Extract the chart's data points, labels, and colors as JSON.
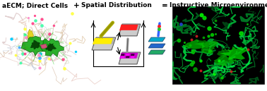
{
  "title_right": "Instructive Microenvironments",
  "label_left": "aECM; Direct Cells",
  "label_plus": "+",
  "label_middle": "Spatial Distribution",
  "label_equals": "=",
  "bg_color": "#ffffff",
  "label_fontsize": 6.5,
  "fig_width": 3.78,
  "fig_height": 1.29,
  "dpi": 100,
  "slide_yellow": "#ffee00",
  "slide_red": "#ff2020",
  "slide_purple": "#cc00cc",
  "slide_gray": "#b0b0b0",
  "slide_darkgray": "#888888",
  "stacked_colors": [
    "#00aacc",
    "#2266cc",
    "#22aa66"
  ],
  "network_lw_min": 0.4,
  "network_lw_max": 2.0
}
